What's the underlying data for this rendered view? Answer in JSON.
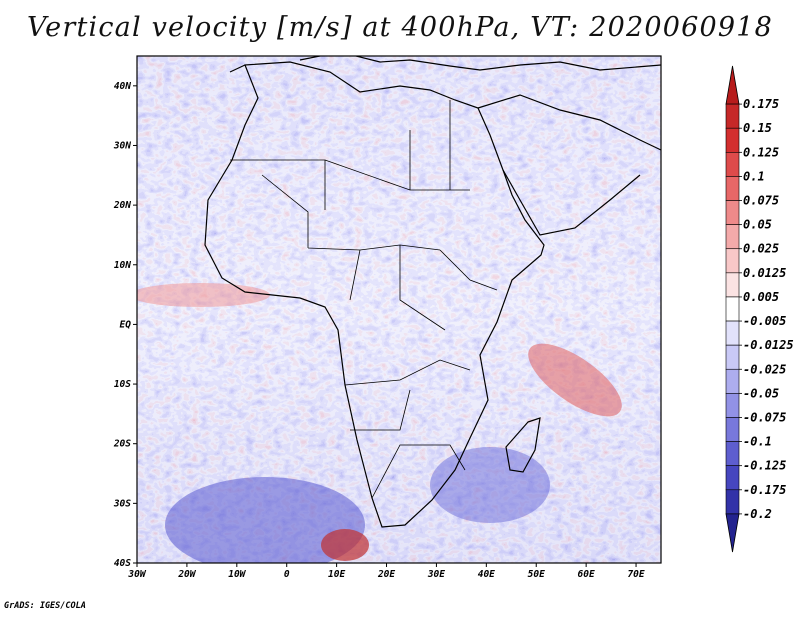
{
  "title": "Vertical velocity [m/s] at 400hPa, VT: 2020060918",
  "credit": "GrADS: IGES/COLA",
  "map": {
    "lon_ticks": [
      "30W",
      "20W",
      "10W",
      "0",
      "10E",
      "20E",
      "30E",
      "40E",
      "50E",
      "60E",
      "70E"
    ],
    "lat_ticks": [
      "40N",
      "30N",
      "20N",
      "10N",
      "EQ",
      "10S",
      "20S",
      "30S",
      "40S"
    ],
    "lon_range": [
      -30,
      75
    ],
    "lat_range": [
      -40,
      45
    ]
  },
  "colorbar": {
    "labels": [
      "0.175",
      "0.15",
      "0.125",
      "0.1",
      "0.075",
      "0.05",
      "0.025",
      "0.0125",
      "0.005",
      "-0.005",
      "-0.0125",
      "-0.025",
      "-0.05",
      "-0.075",
      "-0.1",
      "-0.125",
      "-0.175",
      "-0.2"
    ],
    "colors": [
      "#b71c1c",
      "#c62828",
      "#d32f2f",
      "#de4b4b",
      "#e86767",
      "#ef8a8a",
      "#f4aaaa",
      "#f8c8c8",
      "#fbe3e3",
      "#ffffff",
      "#e2e2fb",
      "#c9c9f6",
      "#adadef",
      "#9292e6",
      "#7878db",
      "#5e5ecf",
      "#4646bf",
      "#3232a8",
      "#23238f"
    ]
  }
}
